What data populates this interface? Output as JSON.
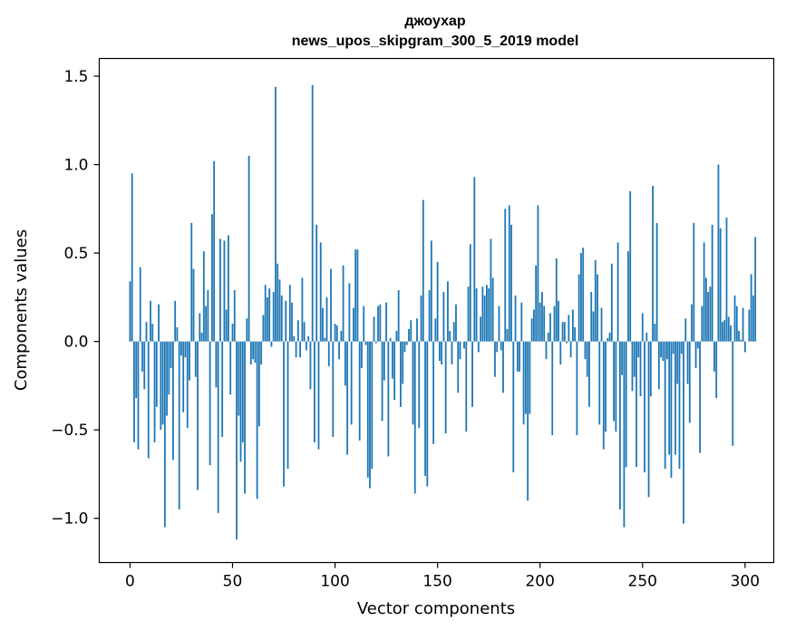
{
  "chart_data": {
    "type": "bar",
    "title_line1": "джоухар",
    "title_line2": "news_upos_skipgram_300_5_2019 model",
    "xlabel": "Vector components",
    "ylabel": "Components values",
    "xlim": [
      -15,
      314
    ],
    "ylim": [
      -1.25,
      1.6
    ],
    "xticks": [
      0,
      50,
      100,
      150,
      200,
      250,
      300
    ],
    "xtick_labels": [
      "0",
      "50",
      "100",
      "150",
      "200",
      "250",
      "300"
    ],
    "yticks": [
      -1.0,
      -0.5,
      0.0,
      0.5,
      1.0,
      1.5
    ],
    "ytick_labels": [
      "−1.0",
      "−0.5",
      "0.0",
      "0.5",
      "1.0",
      "1.5"
    ],
    "bar_color": "#1f77b4",
    "values": [
      0.34,
      0.95,
      -0.57,
      -0.32,
      -0.61,
      0.42,
      -0.17,
      -0.27,
      0.11,
      -0.66,
      0.23,
      0.1,
      -0.57,
      -0.37,
      0.21,
      -0.5,
      -0.47,
      -1.05,
      -0.42,
      -0.3,
      -0.15,
      -0.67,
      0.23,
      0.08,
      -0.95,
      -0.08,
      -0.4,
      -0.09,
      -0.49,
      -0.22,
      0.67,
      0.41,
      -0.2,
      -0.84,
      0.16,
      0.05,
      0.51,
      0.2,
      0.29,
      -0.7,
      0.72,
      1.02,
      -0.26,
      -0.97,
      0.58,
      -0.54,
      0.57,
      0.18,
      0.6,
      -0.3,
      0.1,
      0.29,
      -1.12,
      -0.42,
      -0.68,
      -0.57,
      -0.86,
      0.13,
      1.05,
      -0.13,
      -0.1,
      -0.12,
      -0.89,
      -0.48,
      -0.13,
      0.15,
      0.32,
      0.25,
      0.3,
      -0.03,
      0.28,
      1.44,
      0.44,
      0.35,
      0.26,
      -0.82,
      0.23,
      -0.72,
      0.32,
      0.22,
      0.03,
      -0.09,
      0.12,
      -0.09,
      0.36,
      0.11,
      -0.05,
      0.03,
      -0.27,
      1.45,
      -0.57,
      0.66,
      -0.61,
      0.56,
      0.19,
      0.02,
      0.25,
      -0.14,
      0.41,
      -0.54,
      0.1,
      0.09,
      -0.1,
      0.06,
      0.43,
      -0.25,
      -0.64,
      0.33,
      -0.47,
      0.19,
      0.52,
      0.52,
      -0.56,
      -0.15,
      0.2,
      -0.02,
      -0.77,
      -0.83,
      -0.72,
      0.14,
      -0.01,
      0.2,
      0.21,
      -0.45,
      -0.22,
      0.22,
      -0.65,
      0.02,
      -0.21,
      -0.33,
      0.06,
      0.29,
      -0.37,
      -0.24,
      -0.06,
      -0.02,
      0.07,
      0.12,
      -0.47,
      -0.86,
      0.13,
      -0.49,
      0.26,
      0.8,
      -0.76,
      -0.82,
      0.29,
      0.57,
      -0.58,
      0.13,
      0.45,
      -0.11,
      -0.13,
      0.28,
      -0.52,
      0.34,
      0.06,
      -0.13,
      0.11,
      0.21,
      -0.29,
      -0.1,
      0.0,
      -0.04,
      -0.51,
      0.31,
      0.55,
      -0.37,
      0.93,
      0.3,
      -0.06,
      0.14,
      0.31,
      0.26,
      0.32,
      0.3,
      0.58,
      0.36,
      -0.2,
      -0.06,
      0.2,
      -0.05,
      -0.29,
      0.75,
      0.07,
      0.77,
      0.66,
      -0.74,
      0.26,
      -0.17,
      -0.17,
      0.22,
      -0.47,
      -0.41,
      -0.9,
      -0.41,
      0.13,
      0.18,
      0.43,
      0.77,
      0.22,
      0.28,
      0.2,
      -0.1,
      0.05,
      0.16,
      -0.53,
      0.2,
      0.47,
      0.23,
      -0.13,
      0.11,
      0.11,
      -0.01,
      0.15,
      -0.09,
      0.18,
      0.08,
      -0.53,
      0.38,
      0.5,
      0.53,
      -0.1,
      -0.2,
      -0.37,
      0.28,
      0.17,
      0.46,
      0.38,
      -0.47,
      0.19,
      -0.61,
      -0.51,
      0.02,
      0.05,
      0.44,
      -0.45,
      -0.51,
      0.56,
      -0.95,
      -0.19,
      -1.05,
      -0.71,
      0.51,
      0.85,
      -0.28,
      -0.2,
      -0.71,
      -0.09,
      -0.31,
      0.16,
      -0.74,
      0.05,
      -0.88,
      -0.31,
      0.88,
      0.1,
      0.67,
      -0.27,
      -0.09,
      -0.11,
      -0.72,
      -0.1,
      -0.64,
      -0.77,
      -0.07,
      -0.64,
      -0.24,
      -0.72,
      -0.07,
      -1.03,
      0.13,
      -0.24,
      -0.46,
      0.21,
      0.67,
      -0.15,
      -0.04,
      -0.63,
      0.2,
      0.56,
      0.36,
      0.28,
      0.31,
      0.66,
      -0.17,
      -0.32,
      1.0,
      0.64,
      0.11,
      0.12,
      0.7,
      0.14,
      0.09,
      -0.59,
      0.26,
      0.2,
      0.06,
      0.01,
      0.19,
      -0.06,
      0.0,
      0.18,
      0.38,
      0.26,
      0.59
    ]
  }
}
